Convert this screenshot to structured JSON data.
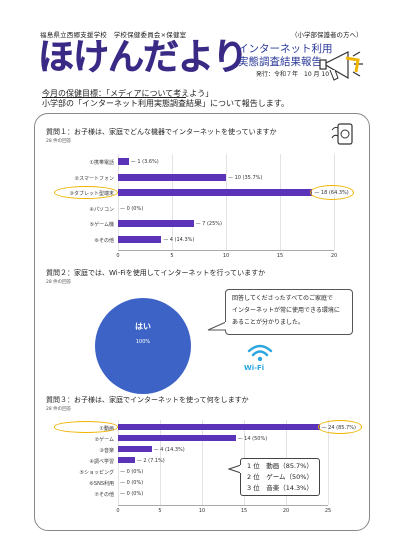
{
  "header": {
    "school": "福島県立西郷支援学校　学校保健委員会×保健室",
    "audience": "（小学部保護者の方へ）",
    "title": "ほけんだより",
    "subtitle_line1": "インターネット利用",
    "subtitle_line2": "実態調査結果報告",
    "issue": "発行：令和７年　10 月 10 日"
  },
  "intro": {
    "goal": "今月の保健目標：「メディアについて考えよう」",
    "body": "小学部の「インターネット利用実態調査結果」について報告します。"
  },
  "q1": {
    "title": "質問１：お子様は、家庭でどんな機器でインターネットを使っていますか",
    "count": "28 件の回答",
    "ticks": [
      "0",
      "5",
      "10",
      "15",
      "20"
    ]
  },
  "q2": {
    "title": "質問２：家庭では、Wi-Fiを使用してインターネットを行っていますか",
    "count": "28 件の回答",
    "pie_label": "はい",
    "pie_pct": "100%",
    "callout_l1": "回答してくださったすべてのご家庭で",
    "callout_l2": "インターネットが常に使用できる環境に",
    "callout_l3": "あることが分かりました。",
    "wifi_text": "Wi-Fi"
  },
  "q3": {
    "title": "質問３：お子様は、家庭でインターネットを使って何をしますか",
    "count": "28 件の回答",
    "ticks": [
      "0",
      "5",
      "10",
      "15",
      "20",
      "25"
    ],
    "rank1": "1 位　動画（85.7%）",
    "rank2": "2 位　ゲーム（50%）",
    "rank3": "3 位　音楽（14.3%）"
  },
  "chart_data": [
    {
      "type": "bar",
      "orientation": "horizontal",
      "title": "質問１：お子様は、家庭でどんな機器でインターネットを使っていますか",
      "categories": [
        "①携帯電話",
        "②スマートフォン",
        "③タブレット型端末",
        "④パソコン",
        "⑤ゲーム機",
        "⑥その他"
      ],
      "values": [
        1,
        10,
        18,
        0,
        7,
        4
      ],
      "labels": [
        "1 (3.6%)",
        "10 (35.7%)",
        "18 (64.3%)",
        "0 (0%)",
        "7 (25%)",
        "4 (14.3%)"
      ],
      "xlim": [
        0,
        20
      ],
      "highlight": "③タブレット型端末",
      "bar_color": "#5b33b8"
    },
    {
      "type": "pie",
      "title": "質問２：家庭では、Wi-Fiを使用してインターネットを行っていますか",
      "categories": [
        "はい"
      ],
      "values": [
        100
      ],
      "colors": [
        "#3d63c6"
      ]
    },
    {
      "type": "bar",
      "orientation": "horizontal",
      "title": "質問３：お子様は、家庭でインターネットを使って何をしますか",
      "categories": [
        "①動画",
        "②ゲーム",
        "③音楽",
        "④調べ学習",
        "⑤ショッピング",
        "⑥SNS利用",
        "⑦その他"
      ],
      "values": [
        24,
        14,
        4,
        2,
        0,
        0,
        0
      ],
      "labels": [
        "24 (85.7%)",
        "14 (50%)",
        "4 (14.3%)",
        "2 (7.1%)",
        "0 (0%)",
        "0 (0%)",
        "0 (0%)"
      ],
      "xlim": [
        0,
        25
      ],
      "highlight": "①動画",
      "bar_color": "#5b33b8"
    }
  ]
}
